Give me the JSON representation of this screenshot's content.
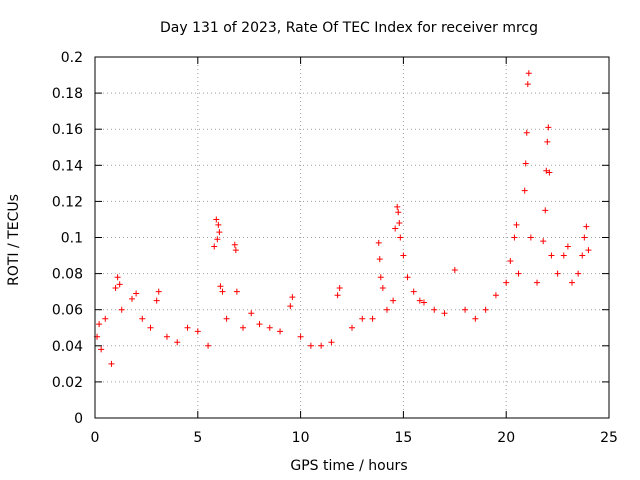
{
  "chart_data": {
    "type": "scatter",
    "title": "Day 131 of 2023, Rate Of TEC Index for receiver mrcg",
    "xlabel": "GPS time / hours",
    "ylabel": "ROTI / TECUs",
    "xlim": [
      0,
      25
    ],
    "ylim": [
      0,
      0.2
    ],
    "xticks": [
      0,
      5,
      10,
      15,
      20,
      25
    ],
    "yticks": [
      0,
      0.02,
      0.04,
      0.06,
      0.08,
      0.1,
      0.12,
      0.14,
      0.16,
      0.18,
      0.2
    ],
    "xtick_labels": [
      "0",
      "5",
      "10",
      "15",
      "20",
      "25"
    ],
    "ytick_labels": [
      "0",
      "0.02",
      "0.04",
      "0.06",
      "0.08",
      "0.1",
      "0.12",
      "0.14",
      "0.16",
      "0.18",
      "0.2"
    ],
    "grid": true,
    "marker": "+",
    "color": "#ff0000",
    "series": [
      {
        "name": "ROTI",
        "points": [
          [
            0.1,
            0.045
          ],
          [
            0.2,
            0.052
          ],
          [
            0.3,
            0.038
          ],
          [
            0.5,
            0.055
          ],
          [
            0.8,
            0.03
          ],
          [
            1.0,
            0.072
          ],
          [
            1.1,
            0.078
          ],
          [
            1.2,
            0.074
          ],
          [
            1.3,
            0.06
          ],
          [
            1.8,
            0.066
          ],
          [
            2.0,
            0.069
          ],
          [
            2.3,
            0.055
          ],
          [
            2.7,
            0.05
          ],
          [
            3.0,
            0.065
          ],
          [
            3.1,
            0.07
          ],
          [
            3.5,
            0.045
          ],
          [
            4.0,
            0.042
          ],
          [
            4.5,
            0.05
          ],
          [
            5.0,
            0.048
          ],
          [
            5.5,
            0.04
          ],
          [
            5.8,
            0.095
          ],
          [
            5.9,
            0.11
          ],
          [
            6.0,
            0.107
          ],
          [
            6.05,
            0.103
          ],
          [
            5.95,
            0.099
          ],
          [
            6.1,
            0.073
          ],
          [
            6.2,
            0.07
          ],
          [
            6.4,
            0.055
          ],
          [
            6.8,
            0.096
          ],
          [
            6.85,
            0.093
          ],
          [
            6.9,
            0.07
          ],
          [
            7.2,
            0.05
          ],
          [
            7.6,
            0.058
          ],
          [
            8.0,
            0.052
          ],
          [
            8.5,
            0.05
          ],
          [
            9.0,
            0.048
          ],
          [
            9.5,
            0.062
          ],
          [
            9.6,
            0.067
          ],
          [
            10.0,
            0.045
          ],
          [
            10.5,
            0.04
          ],
          [
            11.0,
            0.04
          ],
          [
            11.5,
            0.042
          ],
          [
            11.8,
            0.068
          ],
          [
            11.9,
            0.072
          ],
          [
            12.5,
            0.05
          ],
          [
            13.0,
            0.055
          ],
          [
            13.5,
            0.055
          ],
          [
            13.8,
            0.097
          ],
          [
            13.85,
            0.088
          ],
          [
            13.9,
            0.078
          ],
          [
            14.0,
            0.072
          ],
          [
            14.2,
            0.06
          ],
          [
            14.5,
            0.065
          ],
          [
            14.6,
            0.105
          ],
          [
            14.7,
            0.117
          ],
          [
            14.75,
            0.114
          ],
          [
            14.8,
            0.108
          ],
          [
            14.85,
            0.1
          ],
          [
            15.0,
            0.09
          ],
          [
            15.2,
            0.078
          ],
          [
            15.5,
            0.07
          ],
          [
            15.8,
            0.065
          ],
          [
            16.0,
            0.064
          ],
          [
            16.5,
            0.06
          ],
          [
            17.0,
            0.058
          ],
          [
            17.5,
            0.082
          ],
          [
            18.0,
            0.06
          ],
          [
            18.5,
            0.055
          ],
          [
            19.0,
            0.06
          ],
          [
            19.5,
            0.068
          ],
          [
            20.0,
            0.075
          ],
          [
            20.2,
            0.087
          ],
          [
            20.4,
            0.1
          ],
          [
            20.5,
            0.107
          ],
          [
            20.6,
            0.08
          ],
          [
            20.9,
            0.126
          ],
          [
            20.95,
            0.141
          ],
          [
            21.0,
            0.158
          ],
          [
            21.05,
            0.185
          ],
          [
            21.1,
            0.191
          ],
          [
            21.2,
            0.1
          ],
          [
            21.5,
            0.075
          ],
          [
            21.8,
            0.098
          ],
          [
            21.9,
            0.115
          ],
          [
            21.95,
            0.137
          ],
          [
            22.0,
            0.153
          ],
          [
            22.05,
            0.161
          ],
          [
            22.1,
            0.136
          ],
          [
            22.2,
            0.09
          ],
          [
            22.5,
            0.08
          ],
          [
            22.8,
            0.09
          ],
          [
            23.0,
            0.095
          ],
          [
            23.2,
            0.075
          ],
          [
            23.5,
            0.08
          ],
          [
            23.7,
            0.09
          ],
          [
            23.8,
            0.1
          ],
          [
            23.9,
            0.106
          ],
          [
            24.0,
            0.093
          ]
        ]
      }
    ]
  }
}
